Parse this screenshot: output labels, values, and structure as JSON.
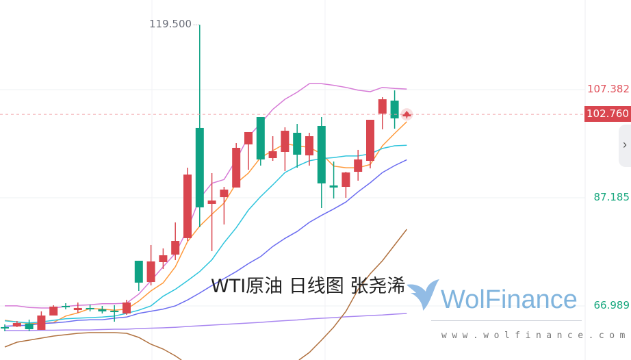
{
  "chart_data": {
    "type": "candlestick",
    "title": "",
    "ylim": [
      56.89,
      124.13
    ],
    "grid": true,
    "colors": {
      "up": "#d9464f",
      "down": "#0fa284"
    },
    "y_tick_labels": [
      {
        "value": 107.382,
        "label": "107.382",
        "color": "#e0525c"
      },
      {
        "value": 87.185,
        "label": "87.185",
        "color": "#17a77e"
      },
      {
        "value": 66.989,
        "label": "66.989",
        "color": "#17a77e"
      }
    ],
    "last_price": {
      "value": 102.76,
      "label": "102.760",
      "color": "#d9464f"
    },
    "max_marker": {
      "value": 119.5,
      "label": "119.500",
      "index": 16
    },
    "candles": [
      [
        63.03,
        63.54,
        62.26,
        62.9
      ],
      [
        63.15,
        64.18,
        63.03,
        63.79
      ],
      [
        63.67,
        64.43,
        62.26,
        62.64
      ],
      [
        62.52,
        65.97,
        62.52,
        65.2
      ],
      [
        65.2,
        67.12,
        65.2,
        66.86
      ],
      [
        66.99,
        67.5,
        66.35,
        66.86
      ],
      [
        66.22,
        67.63,
        65.71,
        66.61
      ],
      [
        66.61,
        67.24,
        65.97,
        66.35
      ],
      [
        66.35,
        66.99,
        65.58,
        65.97
      ],
      [
        66.09,
        67.12,
        64.05,
        65.84
      ],
      [
        65.58,
        68.14,
        65.33,
        67.63
      ],
      [
        75.43,
        75.43,
        69.8,
        71.34
      ],
      [
        71.46,
        78.37,
        70.82,
        75.3
      ],
      [
        75.17,
        77.73,
        73.89,
        76.45
      ],
      [
        76.58,
        82.59,
        75.55,
        79.13
      ],
      [
        79.65,
        92.81,
        79.13,
        91.53
      ],
      [
        100.23,
        119.5,
        81.69,
        85.4
      ],
      [
        86.04,
        91.79,
        77.22,
        86.68
      ],
      [
        87.31,
        89.23,
        82.2,
        88.72
      ],
      [
        89.1,
        97.41,
        89.1,
        96.52
      ],
      [
        97.16,
        99.46,
        92.43,
        99.46
      ],
      [
        102.27,
        102.27,
        93.2,
        94.35
      ],
      [
        94.6,
        98.69,
        94.09,
        95.88
      ],
      [
        95.75,
        100.35,
        92.17,
        99.71
      ],
      [
        99.33,
        100.99,
        92.81,
        95.24
      ],
      [
        95.11,
        99.33,
        93.2,
        98.69
      ],
      [
        100.61,
        102.27,
        85.27,
        89.87
      ],
      [
        89.49,
        93.96,
        87.06,
        89.1
      ],
      [
        89.23,
        92.04,
        87.19,
        91.92
      ],
      [
        92.04,
        96.14,
        90.38,
        94.35
      ],
      [
        94.09,
        101.76,
        92.68,
        101.76
      ],
      [
        102.91,
        105.98,
        99.97,
        105.59
      ],
      [
        105.34,
        107.25,
        100.1,
        102.02
      ],
      [
        102.4,
        103.42,
        102.02,
        102.76
      ]
    ],
    "lines": [
      {
        "color": "#d67ad6",
        "values": [
          67.0,
          67.0,
          66.7,
          66.6,
          66.6,
          66.9,
          67.1,
          67.2,
          67.4,
          67.4,
          67.5,
          69.2,
          71.7,
          74.3,
          76.8,
          81.3,
          87.1,
          89.9,
          90.6,
          94.3,
          98.6,
          101.1,
          103.7,
          105.6,
          106.9,
          108.5,
          108.5,
          108.2,
          107.8,
          107.3,
          107.0,
          107.8,
          107.6,
          107.5
        ]
      },
      {
        "color": "#ff9a3c",
        "values": [
          64.3,
          64.0,
          63.7,
          63.7,
          63.9,
          65.1,
          65.7,
          66.5,
          66.4,
          66.2,
          66.4,
          67.9,
          69.8,
          71.3,
          74.3,
          79.0,
          81.9,
          84.1,
          86.2,
          89.9,
          91.8,
          94.7,
          96.0,
          97.3,
          96.9,
          96.6,
          95.4,
          93.1,
          92.8,
          92.8,
          93.4,
          96.9,
          99.2,
          101.4
        ]
      },
      {
        "color": "#2ec4dc",
        "values": [
          64.2,
          64.0,
          63.8,
          64.0,
          64.3,
          64.6,
          64.7,
          64.8,
          64.9,
          65.1,
          65.6,
          66.2,
          67.0,
          68.8,
          70.1,
          71.7,
          73.4,
          75.6,
          78.8,
          81.6,
          84.9,
          87.4,
          89.6,
          91.9,
          93.1,
          94.1,
          94.5,
          94.7,
          95.0,
          95.0,
          95.4,
          96.4,
          96.9,
          97.0
        ]
      },
      {
        "color": "#6b6cf0",
        "values": [
          63.2,
          63.3,
          63.4,
          63.7,
          63.8,
          64.0,
          64.3,
          64.4,
          64.4,
          64.7,
          64.9,
          65.6,
          66.0,
          66.4,
          67.0,
          68.1,
          69.4,
          70.8,
          72.1,
          73.4,
          74.9,
          76.2,
          78.1,
          79.6,
          80.9,
          82.6,
          83.9,
          85.1,
          86.4,
          88.3,
          90.0,
          91.9,
          93.2,
          94.3
        ]
      },
      {
        "color": "#a987f0",
        "values": [
          62.39,
          62.39,
          62.39,
          62.45,
          62.45,
          62.5,
          62.5,
          62.5,
          62.58,
          62.64,
          62.64,
          62.77,
          62.83,
          62.9,
          63.0,
          63.15,
          63.28,
          63.41,
          63.54,
          63.66,
          63.79,
          63.92,
          64.1,
          64.24,
          64.37,
          64.56,
          64.69,
          64.8,
          64.95,
          65.07,
          65.2,
          65.3,
          65.46,
          65.58
        ]
      },
      {
        "color": "#b0713f",
        "values": [
          59.32,
          60.21,
          60.6,
          60.98,
          61.36,
          61.62,
          61.87,
          62.0,
          62.0,
          62.0,
          61.87,
          61.11,
          59.83,
          58.93,
          57.66,
          56.12,
          54.46,
          53.18,
          51.9,
          51.27,
          51.01,
          51.27,
          51.9,
          53.82,
          56.64,
          58.3,
          60.6,
          63.03,
          65.97,
          70.06,
          73.0,
          75.43,
          78.37,
          81.3
        ]
      }
    ]
  },
  "watermark": {
    "title": "WTI原油 日线图 张尧浠",
    "logo_text": "WolFinance",
    "url": "www.wolfinance.com"
  },
  "panel_toggle": {
    "icon": "chevron-right-icon",
    "glyph": "›"
  }
}
